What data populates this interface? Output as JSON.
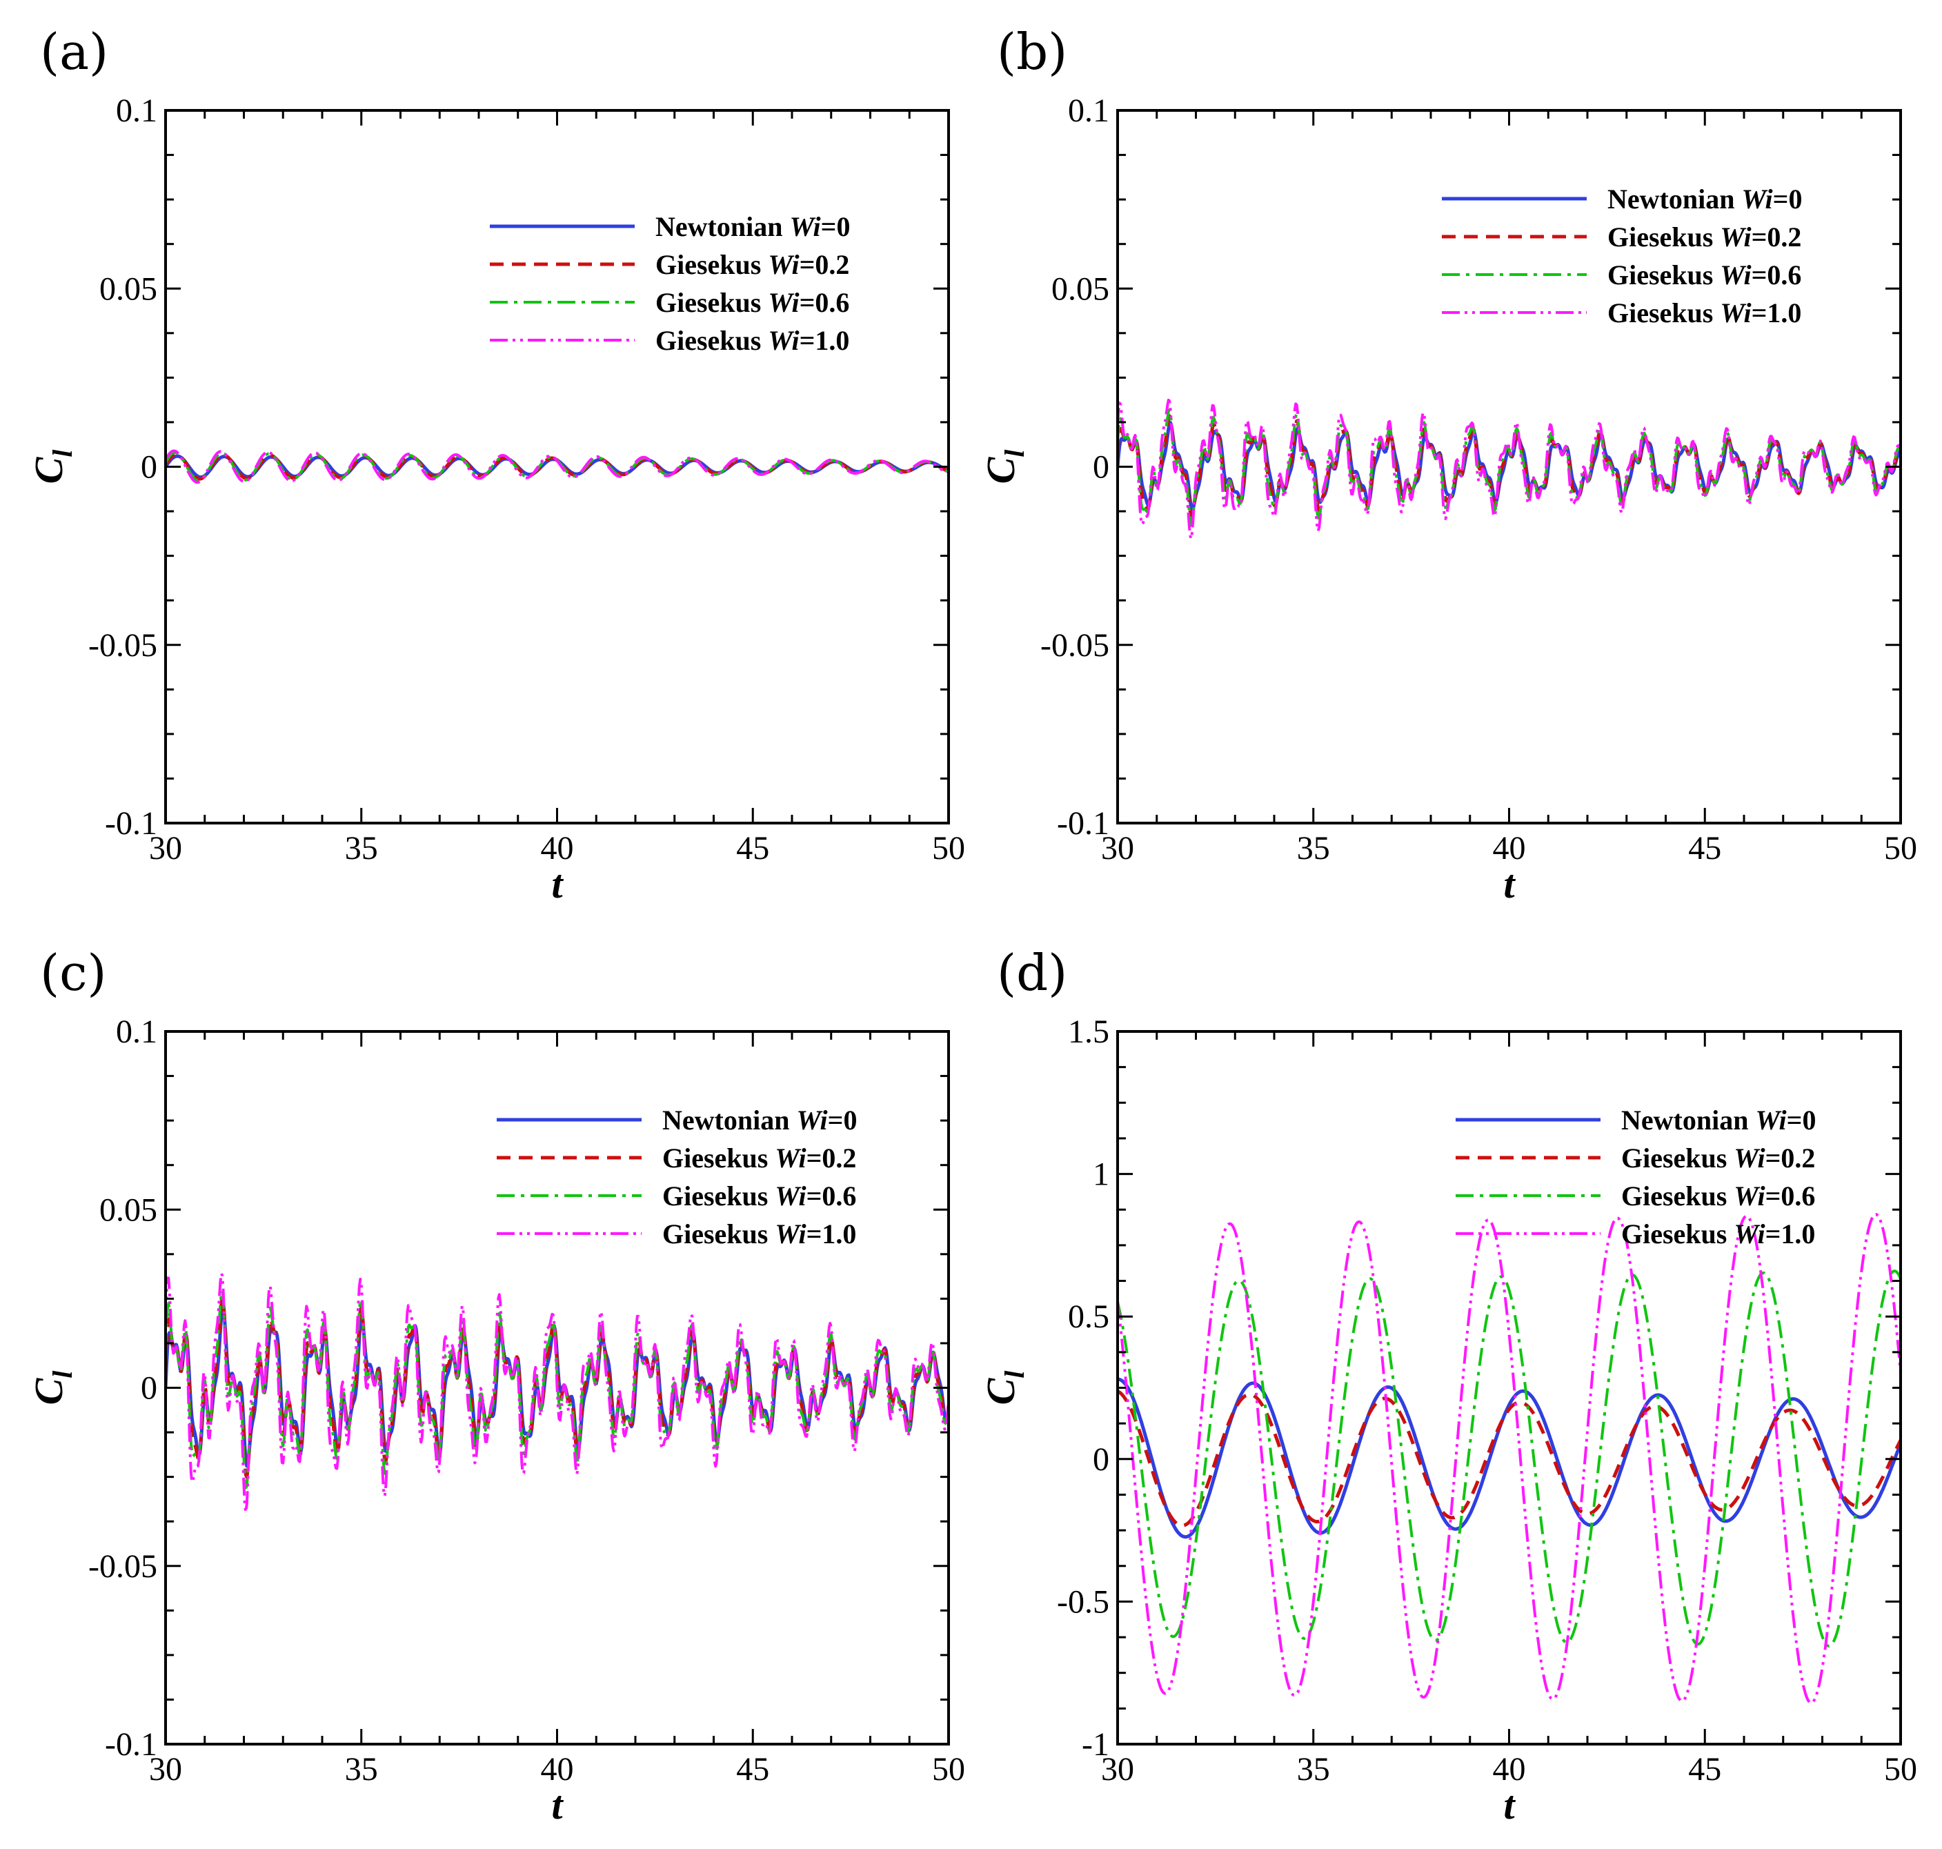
{
  "series_styles": [
    {
      "color": "#2f3fe0",
      "dash": "",
      "width": 5
    },
    {
      "color": "#cc1010",
      "dash": "20 12",
      "width": 5
    },
    {
      "color": "#11c411",
      "dash": "26 9 5 9",
      "width": 4
    },
    {
      "color": "#ff18ff",
      "dash": "26 7 4 7 4 7",
      "width": 4
    }
  ],
  "chart_data": [
    {
      "type": "line",
      "label": "(a)",
      "xlabel": "t",
      "ylabel_main": "C",
      "ylabel_sub": "l",
      "xlim": [
        30,
        50
      ],
      "ylim": [
        -0.1,
        0.1
      ],
      "xticks": [
        30,
        35,
        40,
        45,
        50
      ],
      "xtick_labels": [
        "30",
        "35",
        "40",
        "45",
        "50"
      ],
      "yticks": [
        -0.1,
        -0.05,
        0,
        0.05,
        0.1
      ],
      "ytick_labels": [
        "-0.1",
        "-0.05",
        "0",
        "0.05",
        "0.1"
      ],
      "legend_position": "upper-right",
      "series": [
        {
          "name": "Newtonian",
          "wi_label": "Wi",
          "wi_value": "=0",
          "kind": "osc",
          "amp0": 0.003,
          "amp1": 0.0012,
          "period": 1.2,
          "phase": 0.0,
          "offset": 0.0,
          "jitter": 0.0
        },
        {
          "name": "Giesekus",
          "wi_label": "Wi",
          "wi_value": "=0.2",
          "kind": "osc",
          "amp0": 0.0035,
          "amp1": 0.0013,
          "period": 1.2,
          "phase": 0.15,
          "offset": 0.0,
          "jitter": 0.0
        },
        {
          "name": "Giesekus",
          "wi_label": "Wi",
          "wi_value": "=0.6",
          "kind": "osc",
          "amp0": 0.004,
          "amp1": 0.0014,
          "period": 1.2,
          "phase": 0.3,
          "offset": 0.0,
          "jitter": 0.0
        },
        {
          "name": "Giesekus",
          "wi_label": "Wi",
          "wi_value": "=1.0",
          "kind": "osc",
          "amp0": 0.0045,
          "amp1": 0.0015,
          "period": 1.2,
          "phase": 0.45,
          "offset": 0.0,
          "jitter": 0.0
        }
      ]
    },
    {
      "type": "line",
      "label": "(b)",
      "xlabel": "t",
      "ylabel_main": "C",
      "ylabel_sub": "l",
      "xlim": [
        30,
        50
      ],
      "ylim": [
        -0.1,
        0.1
      ],
      "xticks": [
        30,
        35,
        40,
        45,
        50
      ],
      "xtick_labels": [
        "30",
        "35",
        "40",
        "45",
        "50"
      ],
      "yticks": [
        -0.1,
        -0.05,
        0,
        0.05,
        0.1
      ],
      "ytick_labels": [
        "-0.1",
        "-0.05",
        "0",
        "0.05",
        "0.1"
      ],
      "legend_position": "upper-right",
      "series": [
        {
          "name": "Newtonian",
          "wi_label": "Wi",
          "wi_value": "=0",
          "kind": "osc",
          "amp0": 0.009,
          "amp1": 0.005,
          "period": 1.1,
          "phase": 0.0,
          "offset": 0.0,
          "jitter": 0.3
        },
        {
          "name": "Giesekus",
          "wi_label": "Wi",
          "wi_value": "=0.2",
          "kind": "osc",
          "amp0": 0.01,
          "amp1": 0.005,
          "period": 1.1,
          "phase": 0.2,
          "offset": 0.0,
          "jitter": 0.35
        },
        {
          "name": "Giesekus",
          "wi_label": "Wi",
          "wi_value": "=0.6",
          "kind": "osc",
          "amp0": 0.011,
          "amp1": 0.005,
          "period": 1.1,
          "phase": 0.35,
          "offset": 0.0,
          "jitter": 0.4
        },
        {
          "name": "Giesekus",
          "wi_label": "Wi",
          "wi_value": "=1.0",
          "kind": "osc",
          "amp0": 0.013,
          "amp1": 0.005,
          "period": 1.1,
          "phase": 0.5,
          "offset": 0.0,
          "jitter": 0.45
        }
      ]
    },
    {
      "type": "line",
      "label": "(c)",
      "xlabel": "t",
      "ylabel_main": "C",
      "ylabel_sub": "l",
      "xlim": [
        30,
        50
      ],
      "ylim": [
        -0.1,
        0.1
      ],
      "xticks": [
        30,
        35,
        40,
        45,
        50
      ],
      "xtick_labels": [
        "30",
        "35",
        "40",
        "45",
        "50"
      ],
      "yticks": [
        -0.1,
        -0.05,
        0,
        0.05,
        0.1
      ],
      "ytick_labels": [
        "-0.1",
        "-0.05",
        "0",
        "0.05",
        "0.1"
      ],
      "legend_position": "upper-right",
      "series": [
        {
          "name": "Newtonian",
          "wi_label": "Wi",
          "wi_value": "=0",
          "kind": "osc",
          "amp0": 0.014,
          "amp1": 0.007,
          "period": 1.2,
          "phase": 0.0,
          "offset": 0.0,
          "jitter": 0.5
        },
        {
          "name": "Giesekus",
          "wi_label": "Wi",
          "wi_value": "=0.2",
          "kind": "osc",
          "amp0": 0.015,
          "amp1": 0.007,
          "period": 1.2,
          "phase": 0.15,
          "offset": 0.0,
          "jitter": 0.55
        },
        {
          "name": "Giesekus",
          "wi_label": "Wi",
          "wi_value": "=0.6",
          "kind": "osc",
          "amp0": 0.016,
          "amp1": 0.007,
          "period": 1.2,
          "phase": 0.3,
          "offset": 0.0,
          "jitter": 0.6
        },
        {
          "name": "Giesekus",
          "wi_label": "Wi",
          "wi_value": "=1.0",
          "kind": "osc",
          "amp0": 0.019,
          "amp1": 0.008,
          "period": 1.2,
          "phase": 0.45,
          "offset": 0.0,
          "jitter": 0.65
        }
      ]
    },
    {
      "type": "line",
      "label": "(d)",
      "xlabel": "t",
      "ylabel_main": "C",
      "ylabel_sub": "l",
      "xlim": [
        30,
        50
      ],
      "ylim": [
        -1,
        1.5
      ],
      "xticks": [
        30,
        35,
        40,
        45,
        50
      ],
      "xtick_labels": [
        "30",
        "35",
        "40",
        "45",
        "50"
      ],
      "yticks": [
        -1,
        -0.5,
        0,
        0.5,
        1,
        1.5
      ],
      "ytick_labels": [
        "-1",
        "-0.5",
        "0",
        "0.5",
        "1",
        "1.5"
      ],
      "legend_position": "upper-right",
      "series": [
        {
          "name": "Newtonian",
          "wi_label": "Wi",
          "wi_value": "=0",
          "kind": "osc",
          "amp0": 0.28,
          "amp1": 0.2,
          "period": 3.45,
          "phase": 1.55,
          "offset": 0.0,
          "jitter": 0.0
        },
        {
          "name": "Giesekus",
          "wi_label": "Wi",
          "wi_value": "=0.2",
          "kind": "osc",
          "amp0": 0.24,
          "amp1": 0.16,
          "period": 3.45,
          "phase": 1.7,
          "offset": 0.0,
          "jitter": 0.0
        },
        {
          "name": "Giesekus",
          "wi_label": "Wi",
          "wi_value": "=0.6",
          "kind": "osc",
          "amp0": 0.62,
          "amp1": 0.66,
          "period": 3.35,
          "phase": 2.05,
          "offset": 0.0,
          "jitter": 0.0
        },
        {
          "name": "Giesekus",
          "wi_label": "Wi",
          "wi_value": "=1.0",
          "kind": "osc",
          "amp0": 0.82,
          "amp1": 0.86,
          "period": 3.3,
          "phase": 2.4,
          "offset": 0.0,
          "jitter": 0.0
        }
      ]
    }
  ]
}
